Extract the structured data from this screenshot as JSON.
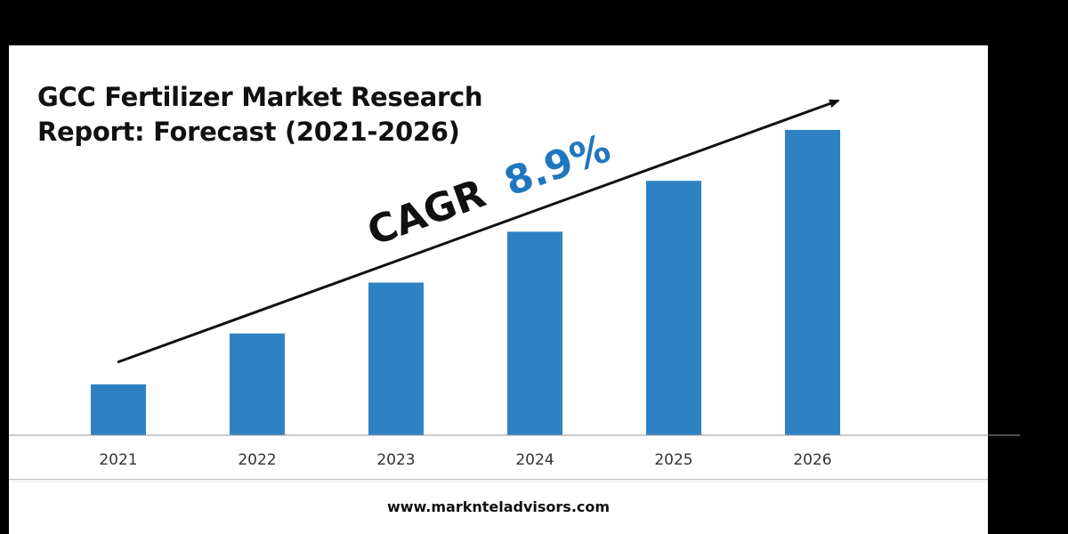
{
  "title": {
    "line1": "GCC Fertilizer Market Research",
    "line2": "Report: Forecast (2021-2026)"
  },
  "cagr": {
    "label": "CAGR",
    "value": "8.9%"
  },
  "footer": {
    "website": "www.marknteladvisors.com"
  },
  "colors": {
    "bar": "#2e82c4",
    "cagr_value": "#1f77c0",
    "background": "#ffffff",
    "frame": "#000000",
    "text": "#111111"
  },
  "chart_data": {
    "type": "bar",
    "categories": [
      "2021",
      "2022",
      "2023",
      "2024",
      "2025",
      "2026"
    ],
    "values": [
      1.0,
      2.0,
      3.0,
      4.0,
      5.0,
      6.0
    ],
    "ylim": [
      0,
      6.0
    ],
    "grid": false,
    "legend": "none",
    "annotations": [
      "CAGR 8.9%"
    ]
  }
}
